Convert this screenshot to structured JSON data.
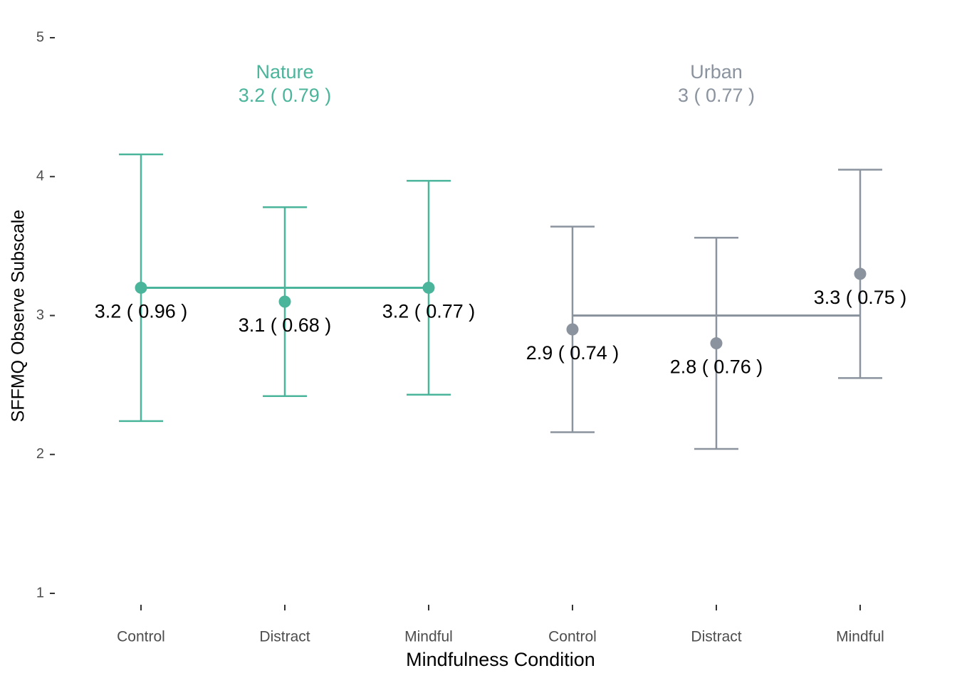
{
  "chart_data": {
    "type": "errorbar",
    "x_title": "Mindfulness Condition",
    "y_title": "SFFMQ Observe Subscale",
    "categories": [
      "Control",
      "Distract",
      "Mindful"
    ],
    "series": [
      {
        "name": "Nature",
        "color": "#4bb59b",
        "mean": 3.2,
        "mean_label": "3.2  ( 0.79 )",
        "values": [
          3.2,
          3.1,
          3.2
        ],
        "errors": [
          0.96,
          0.68,
          0.77
        ],
        "value_labels": [
          "3.2  ( 0.96 )",
          "3.1  ( 0.68 )",
          "3.2  ( 0.77 )"
        ]
      },
      {
        "name": "Urban",
        "color": "#8a939e",
        "mean": 3,
        "mean_label": "3  ( 0.77 )",
        "values": [
          2.9,
          2.8,
          3.3
        ],
        "errors": [
          0.74,
          0.76,
          0.75
        ],
        "value_labels": [
          "2.9  ( 0.74 )",
          "2.8  ( 0.76 )",
          "3.3  ( 0.75 )"
        ]
      }
    ],
    "ylim": [
      1,
      5
    ],
    "yticks": [
      1,
      2,
      3,
      4,
      5
    ]
  }
}
